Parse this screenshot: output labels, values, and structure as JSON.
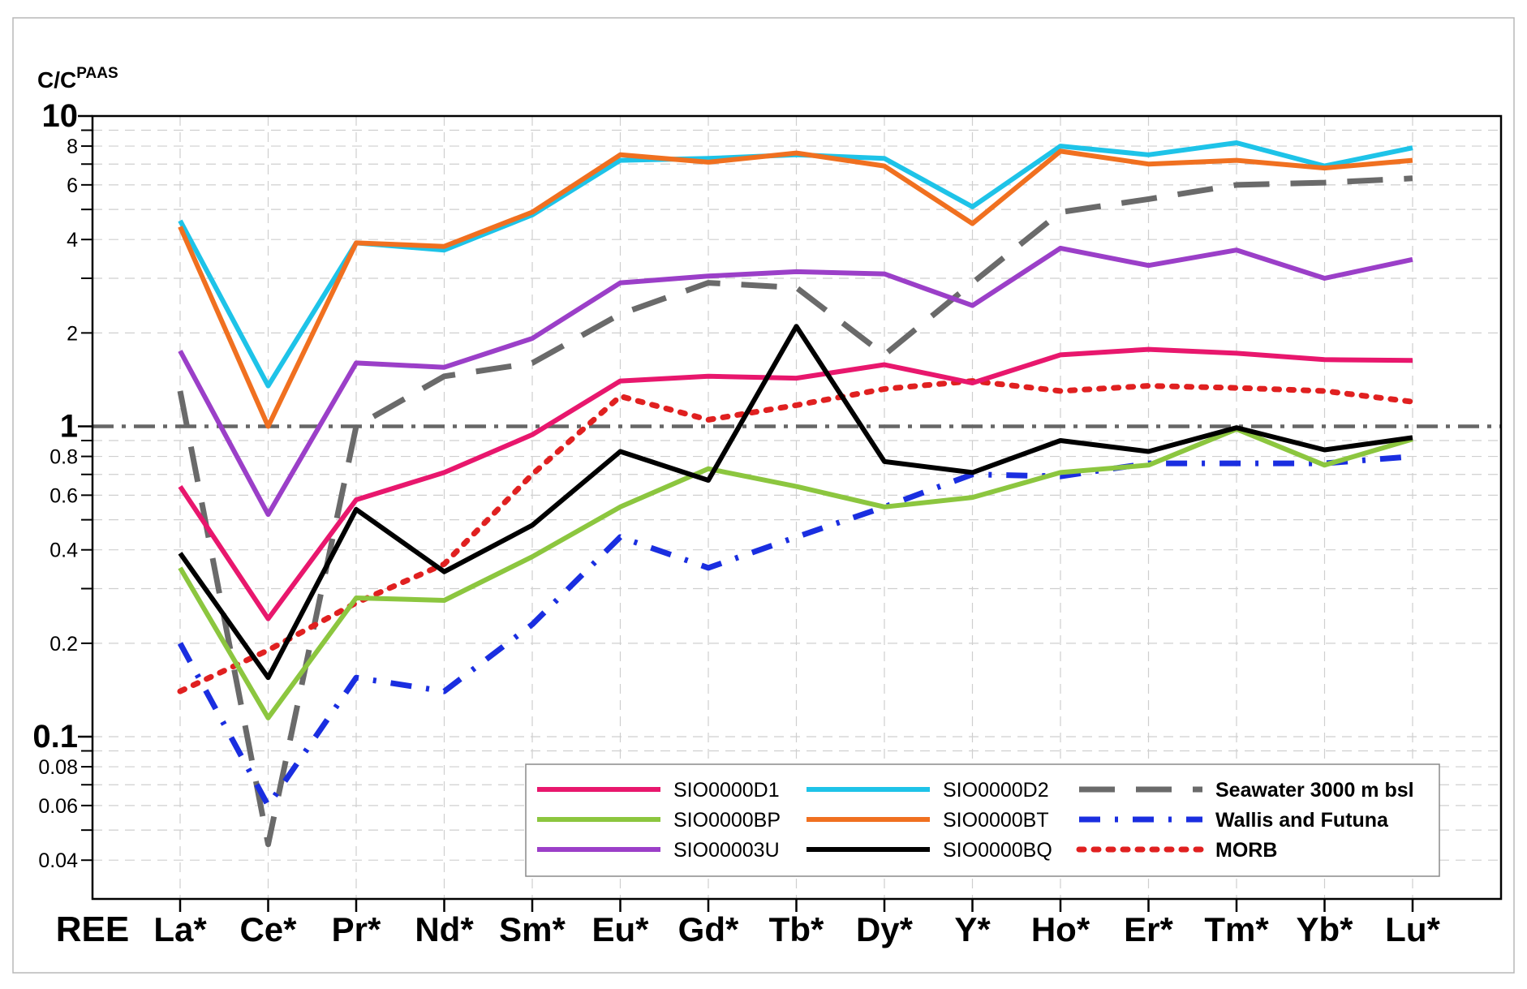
{
  "chart_data": {
    "type": "line",
    "yscale": "log",
    "title": "",
    "ylabel_main": "C/C",
    "ylabel_sup": "PAAS",
    "xlabel": "",
    "ylim": [
      0.03,
      10
    ],
    "grid": true,
    "categories": [
      "La*",
      "Ce*",
      "Pr*",
      "Nd*",
      "Sm*",
      "Eu*",
      "Gd*",
      "Tb*",
      "Dy*",
      "Y*",
      "Ho*",
      "Er*",
      "Tm*",
      "Yb*",
      "Lu*"
    ],
    "x_header_label": "REE",
    "y_ticks_major": [
      {
        "value": 10,
        "label": "10"
      },
      {
        "value": 1,
        "label": "1"
      },
      {
        "value": 0.1,
        "label": "0.1"
      }
    ],
    "y_ticks_minor": [
      {
        "value": 8,
        "label": "8"
      },
      {
        "value": 6,
        "label": "6"
      },
      {
        "value": 4,
        "label": "4"
      },
      {
        "value": 2,
        "label": "2"
      },
      {
        "value": 0.8,
        "label": "0.8"
      },
      {
        "value": 0.6,
        "label": "0.6"
      },
      {
        "value": 0.4,
        "label": "0.4"
      },
      {
        "value": 0.2,
        "label": "0.2"
      },
      {
        "value": 0.08,
        "label": "0.08"
      },
      {
        "value": 0.06,
        "label": "0.06"
      },
      {
        "value": 0.04,
        "label": "0.04"
      }
    ],
    "y_ticks_unlabeled": [
      9,
      7,
      5,
      3,
      0.9,
      0.7,
      0.5,
      0.3,
      0.09,
      0.07,
      0.05
    ],
    "reference_line": {
      "value": 1,
      "style": "dashdot",
      "color": "#666666"
    },
    "series": [
      {
        "name": "SIO0000D1",
        "color": "#e8176d",
        "style": "solid",
        "values": [
          0.64,
          0.24,
          0.58,
          0.71,
          0.94,
          1.4,
          1.45,
          1.43,
          1.58,
          1.38,
          1.7,
          1.77,
          1.72,
          1.64,
          1.63
        ]
      },
      {
        "name": "SIO0000BP",
        "color": "#8cc63f",
        "style": "solid",
        "values": [
          0.35,
          0.115,
          0.28,
          0.275,
          0.38,
          0.55,
          0.73,
          0.64,
          0.55,
          0.59,
          0.71,
          0.75,
          0.98,
          0.75,
          0.91
        ]
      },
      {
        "name": "SIO00003U",
        "color": "#9b3fc8",
        "style": "solid",
        "values": [
          1.75,
          0.52,
          1.6,
          1.55,
          1.92,
          2.9,
          3.05,
          3.15,
          3.1,
          2.45,
          3.75,
          3.3,
          3.7,
          3.0,
          3.45
        ]
      },
      {
        "name": "SIO0000D2",
        "color": "#1ec3e8",
        "style": "solid",
        "values": [
          4.6,
          1.35,
          3.9,
          3.7,
          4.8,
          7.2,
          7.3,
          7.5,
          7.3,
          5.1,
          8.0,
          7.5,
          8.2,
          6.9,
          7.9
        ]
      },
      {
        "name": "SIO0000BT",
        "color": "#f07020",
        "style": "solid",
        "values": [
          4.4,
          1.0,
          3.9,
          3.8,
          4.9,
          7.5,
          7.1,
          7.6,
          6.9,
          4.5,
          7.7,
          7.0,
          7.2,
          6.8,
          7.2
        ]
      },
      {
        "name": "SIO0000BQ",
        "color": "#000000",
        "style": "solid",
        "values": [
          0.39,
          0.155,
          0.54,
          0.34,
          0.48,
          0.83,
          0.67,
          2.1,
          0.77,
          0.71,
          0.9,
          0.83,
          0.99,
          0.84,
          0.92
        ]
      },
      {
        "name": "Seawater 3000 m bsl",
        "color": "#6a6a6a",
        "style": "dash",
        "values": [
          1.3,
          0.045,
          1.0,
          1.45,
          1.6,
          2.3,
          2.9,
          2.8,
          1.7,
          2.9,
          4.9,
          5.4,
          6.0,
          6.1,
          6.3
        ]
      },
      {
        "name": "Wallis and Futuna",
        "color": "#1a2ee0",
        "style": "dashdot",
        "values": [
          0.2,
          0.06,
          0.155,
          0.14,
          0.23,
          0.44,
          0.35,
          0.44,
          0.55,
          0.7,
          0.69,
          0.76,
          0.76,
          0.76,
          0.8
        ]
      },
      {
        "name": "MORB",
        "color": "#e02020",
        "style": "dot",
        "values": [
          0.14,
          0.19,
          0.27,
          0.36,
          0.7,
          1.25,
          1.05,
          1.17,
          1.32,
          1.4,
          1.3,
          1.35,
          1.33,
          1.3,
          1.2
        ]
      }
    ],
    "legend_position": "bottom-right",
    "legend_layout": [
      [
        "SIO0000D1",
        "SIO0000D2",
        "Seawater 3000 m bsl"
      ],
      [
        "SIO0000BP",
        "SIO0000BT",
        "Wallis and Futuna"
      ],
      [
        "SIO00003U",
        "SIO0000BQ",
        "MORB"
      ]
    ]
  }
}
